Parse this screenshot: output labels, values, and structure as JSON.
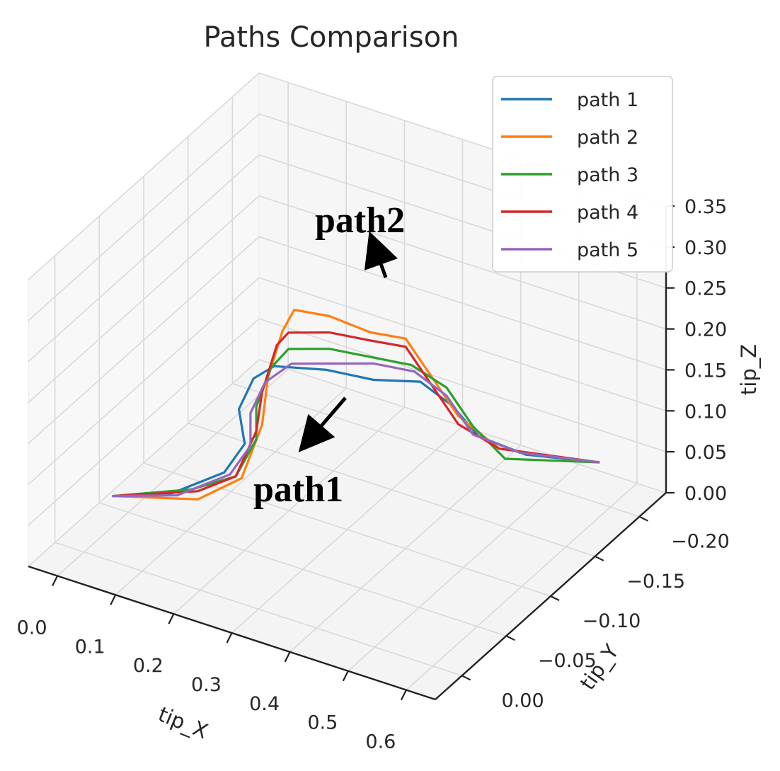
{
  "chart_data": {
    "type": "line",
    "projection": "3d",
    "title": "Paths Comparison",
    "xlabel": "tip_X",
    "ylabel": "tip_Y",
    "zlabel": "tip_Z",
    "xlim": [
      -0.05,
      0.65
    ],
    "ylim": [
      -0.23,
      0.03
    ],
    "zlim": [
      0.0,
      0.35
    ],
    "xticks": [
      "0.0",
      "0.1",
      "0.2",
      "0.3",
      "0.4",
      "0.5",
      "0.6"
    ],
    "yticks": [
      "0.00",
      "−0.05",
      "−0.10",
      "−0.15",
      "−0.20"
    ],
    "zticks": [
      "0.00",
      "0.05",
      "0.10",
      "0.15",
      "0.20",
      "0.25",
      "0.30",
      "0.35"
    ],
    "grid": true,
    "legend_position": "top-right",
    "series": [
      {
        "name": "path 1",
        "color": "#1f77b4",
        "points": [
          [
            0.05,
            0.0,
            0.08
          ],
          [
            0.12,
            -0.02,
            0.08
          ],
          [
            0.18,
            -0.04,
            0.1
          ],
          [
            0.2,
            -0.05,
            0.13
          ],
          [
            0.19,
            -0.05,
            0.17
          ],
          [
            0.2,
            -0.06,
            0.2
          ],
          [
            0.22,
            -0.07,
            0.21
          ],
          [
            0.28,
            -0.09,
            0.2
          ],
          [
            0.33,
            -0.11,
            0.18
          ],
          [
            0.38,
            -0.13,
            0.17
          ],
          [
            0.42,
            -0.14,
            0.14
          ],
          [
            0.45,
            -0.15,
            0.1
          ],
          [
            0.5,
            -0.17,
            0.07
          ],
          [
            0.58,
            -0.2,
            0.05
          ]
        ]
      },
      {
        "name": "path 2",
        "color": "#ff7f0e",
        "points": [
          [
            0.05,
            0.0,
            0.08
          ],
          [
            0.15,
            -0.03,
            0.07
          ],
          [
            0.21,
            -0.04,
            0.1
          ],
          [
            0.23,
            -0.05,
            0.16
          ],
          [
            0.24,
            -0.05,
            0.22
          ],
          [
            0.25,
            -0.06,
            0.27
          ],
          [
            0.27,
            -0.06,
            0.3
          ],
          [
            0.3,
            -0.08,
            0.28
          ],
          [
            0.34,
            -0.1,
            0.25
          ],
          [
            0.37,
            -0.12,
            0.23
          ],
          [
            0.4,
            -0.13,
            0.18
          ],
          [
            0.43,
            -0.14,
            0.13
          ],
          [
            0.47,
            -0.16,
            0.08
          ],
          [
            0.58,
            -0.2,
            0.05
          ]
        ]
      },
      {
        "name": "path 3",
        "color": "#2ca02c",
        "points": [
          [
            0.05,
            0.0,
            0.08
          ],
          [
            0.14,
            -0.03,
            0.08
          ],
          [
            0.2,
            -0.04,
            0.1
          ],
          [
            0.22,
            -0.05,
            0.14
          ],
          [
            0.22,
            -0.05,
            0.18
          ],
          [
            0.23,
            -0.06,
            0.22
          ],
          [
            0.26,
            -0.06,
            0.25
          ],
          [
            0.3,
            -0.08,
            0.24
          ],
          [
            0.34,
            -0.1,
            0.22
          ],
          [
            0.38,
            -0.12,
            0.2
          ],
          [
            0.41,
            -0.14,
            0.16
          ],
          [
            0.44,
            -0.15,
            0.11
          ],
          [
            0.48,
            -0.16,
            0.07
          ],
          [
            0.58,
            -0.2,
            0.05
          ]
        ]
      },
      {
        "name": "path 4",
        "color": "#d62728",
        "points": [
          [
            0.05,
            0.0,
            0.08
          ],
          [
            0.15,
            -0.03,
            0.08
          ],
          [
            0.2,
            -0.04,
            0.1
          ],
          [
            0.22,
            -0.05,
            0.15
          ],
          [
            0.23,
            -0.05,
            0.2
          ],
          [
            0.24,
            -0.06,
            0.25
          ],
          [
            0.26,
            -0.06,
            0.27
          ],
          [
            0.3,
            -0.08,
            0.26
          ],
          [
            0.34,
            -0.1,
            0.24
          ],
          [
            0.37,
            -0.12,
            0.22
          ],
          [
            0.4,
            -0.13,
            0.17
          ],
          [
            0.43,
            -0.14,
            0.12
          ],
          [
            0.47,
            -0.16,
            0.08
          ],
          [
            0.58,
            -0.2,
            0.05
          ]
        ]
      },
      {
        "name": "path 5",
        "color": "#9467bd",
        "points": [
          [
            0.05,
            0.0,
            0.08
          ],
          [
            0.13,
            -0.02,
            0.08
          ],
          [
            0.19,
            -0.04,
            0.1
          ],
          [
            0.21,
            -0.05,
            0.13
          ],
          [
            0.21,
            -0.05,
            0.17
          ],
          [
            0.22,
            -0.06,
            0.2
          ],
          [
            0.25,
            -0.07,
            0.22
          ],
          [
            0.29,
            -0.09,
            0.21
          ],
          [
            0.33,
            -0.11,
            0.2
          ],
          [
            0.37,
            -0.13,
            0.18
          ],
          [
            0.41,
            -0.14,
            0.15
          ],
          [
            0.44,
            -0.15,
            0.1
          ],
          [
            0.49,
            -0.17,
            0.07
          ],
          [
            0.58,
            -0.2,
            0.05
          ]
        ]
      }
    ],
    "annotations": [
      {
        "text": "path2",
        "points_to": "path 2"
      },
      {
        "text": "path1",
        "points_to": "path 1"
      }
    ]
  }
}
